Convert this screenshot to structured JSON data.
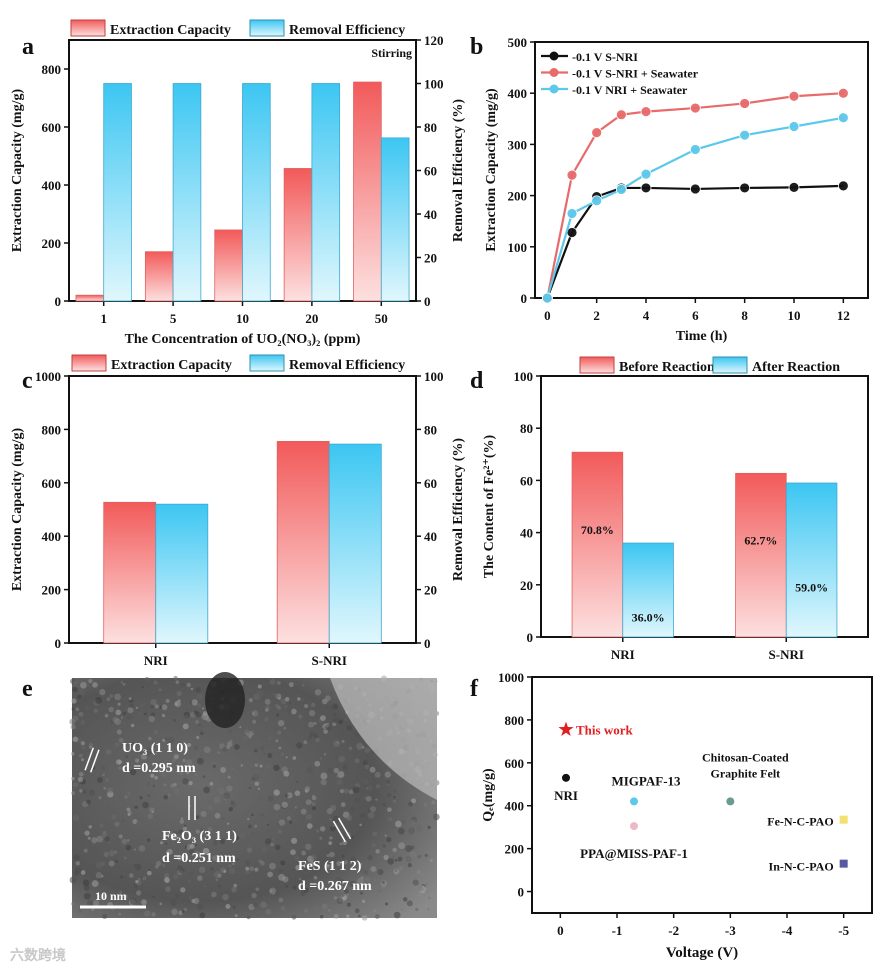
{
  "panel_labels": [
    "a",
    "b",
    "c",
    "d",
    "e",
    "f"
  ],
  "watermark": "六数跨境",
  "colors": {
    "red_top": "#f25a5a",
    "red_bottom": "#fde0e0",
    "blue_top": "#3cc6f2",
    "blue_bottom": "#e0f7fd",
    "black": "#111111",
    "red_line": "#e86a6a",
    "cyan_line": "#5cc8ea"
  },
  "chart_data": [
    {
      "type": "bar",
      "panel": "a",
      "categories": [
        "1",
        "5",
        "10",
        "20",
        "50"
      ],
      "xlabel": "The Concentration of UO₂(NO₃)₂ (ppm)",
      "ylabel": "Extraction Capacity (mg/g)",
      "y2label": "Removal Efficiency (%)",
      "ylim": [
        0,
        900
      ],
      "yticks": [
        0,
        200,
        400,
        600,
        800
      ],
      "y2lim": [
        0,
        120
      ],
      "y2ticks": [
        0,
        20,
        40,
        60,
        80,
        100,
        120
      ],
      "annotation": "Stirring",
      "legend_position": "top",
      "series": [
        {
          "name": "Extraction Capacity",
          "axis": "left",
          "values": [
            20,
            170,
            245,
            457,
            755
          ]
        },
        {
          "name": "Removal Efficiency",
          "axis": "right",
          "values": [
            100,
            100,
            100,
            100,
            75
          ]
        }
      ]
    },
    {
      "type": "line",
      "panel": "b",
      "x": [
        0,
        1,
        2,
        3,
        4,
        6,
        8,
        10,
        12
      ],
      "xlabel": "Time (h)",
      "ylabel": "Extraction Capacity (mg/g)",
      "xlim": [
        -0.5,
        13
      ],
      "xticks": [
        0,
        2,
        4,
        6,
        8,
        10,
        12
      ],
      "ylim": [
        0,
        500
      ],
      "yticks": [
        0,
        100,
        200,
        300,
        400,
        500
      ],
      "legend_position": "top-left",
      "series": [
        {
          "name": "-0.1 V S-NRI",
          "color": "#111111",
          "values": [
            0,
            128,
            198,
            215,
            215,
            213,
            215,
            216,
            219
          ]
        },
        {
          "name": "-0.1 V S-NRI + Seawater",
          "color": "#e86a6a",
          "values": [
            0,
            240,
            323,
            358,
            364,
            371,
            380,
            394,
            400
          ]
        },
        {
          "name": "-0.1 V NRI + Seawater",
          "color": "#5cc8ea",
          "values": [
            0,
            165,
            190,
            212,
            242,
            290,
            318,
            335,
            352
          ]
        }
      ]
    },
    {
      "type": "bar",
      "panel": "c",
      "categories": [
        "NRI",
        "S-NRI"
      ],
      "xlabel": "",
      "ylabel": "Extraction Capacity (mg/g)",
      "y2label": "Removal Efficiency (%)",
      "ylim": [
        0,
        1000
      ],
      "yticks": [
        0,
        200,
        400,
        600,
        800,
        1000
      ],
      "y2lim": [
        0,
        100
      ],
      "y2ticks": [
        0,
        20,
        40,
        60,
        80,
        100
      ],
      "legend_position": "top",
      "series": [
        {
          "name": "Extraction Capacity",
          "axis": "left",
          "values": [
            527,
            755
          ]
        },
        {
          "name": "Removal Efficiency",
          "axis": "right",
          "values": [
            52,
            74.5
          ]
        }
      ]
    },
    {
      "type": "bar",
      "panel": "d",
      "categories": [
        "NRI",
        "S-NRI"
      ],
      "xlabel": "",
      "ylabel": "The Content of Fe²⁺(%)",
      "ylim": [
        0,
        100
      ],
      "yticks": [
        0,
        20,
        40,
        60,
        80,
        100
      ],
      "legend_position": "top",
      "series": [
        {
          "name": "Before Reaction",
          "axis": "left",
          "values": [
            70.8,
            62.7
          ],
          "labels": [
            "70.8%",
            "62.7%"
          ]
        },
        {
          "name": "After  Reaction",
          "axis": "left",
          "values": [
            36.0,
            59.0
          ],
          "labels": [
            "36.0%",
            "59.0%"
          ]
        }
      ]
    },
    {
      "type": "scatter",
      "panel": "f",
      "xlabel": "Voltage (V)",
      "ylabel": "Qₑ(mg/g)",
      "xlim": [
        0.5,
        -5.5
      ],
      "xticks": [
        0,
        -1,
        -2,
        -3,
        -4,
        -5
      ],
      "ylim": [
        -100,
        1000
      ],
      "yticks": [
        0,
        200,
        400,
        600,
        800,
        1000
      ],
      "points": [
        {
          "name": "This work",
          "x": -0.1,
          "y": 755,
          "color": "#e02020",
          "marker": "star"
        },
        {
          "name": "NRI",
          "x": -0.1,
          "y": 530,
          "color": "#111111",
          "marker": "circle"
        },
        {
          "name": "MIGPAF-13",
          "x": -1.3,
          "y": 420,
          "color": "#5cc8ea",
          "marker": "circle"
        },
        {
          "name": "PPA@MISS-PAF-1",
          "x": -1.3,
          "y": 305,
          "color": "#f0b8c4",
          "marker": "circle"
        },
        {
          "name": "Chitosan-Coated Graphite Felt",
          "x": -3,
          "y": 420,
          "color": "#6a9a94",
          "marker": "circle"
        },
        {
          "name": "Fe-N-C-PAO",
          "x": -5,
          "y": 335,
          "color": "#f2e070",
          "marker": "square"
        },
        {
          "name": "In-N-C-PAO",
          "x": -5,
          "y": 130,
          "color": "#5a5aa0",
          "marker": "square"
        }
      ]
    }
  ],
  "tem_image": {
    "panel": "e",
    "labels": [
      "UO₃ (1 1 0)",
      "d =0.295 nm",
      "Fe₂O₃ (3 1 1)",
      "d =0.251 nm",
      "FeS (1 1 2)",
      "d =0.267 nm"
    ],
    "scale_bar": "10 nm"
  }
}
